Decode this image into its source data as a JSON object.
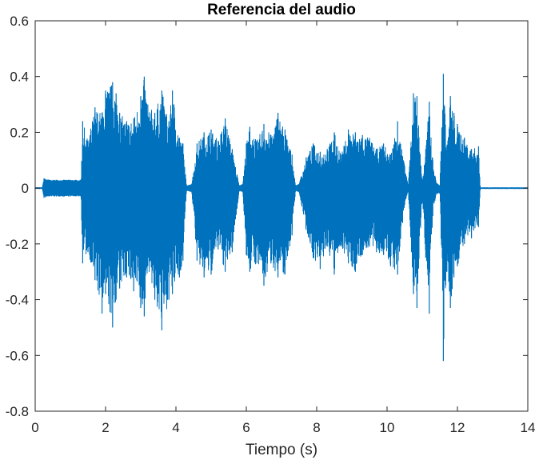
{
  "chart_data": {
    "type": "line",
    "title": "Referencia del audio",
    "xlabel": "Tiempo (s)",
    "ylabel": "",
    "xlim": [
      0,
      14
    ],
    "ylim": [
      -0.8,
      0.6
    ],
    "xticks": [
      0,
      2,
      4,
      6,
      8,
      10,
      12,
      14
    ],
    "xtick_labels": [
      "0",
      "2",
      "4",
      "6",
      "8",
      "10",
      "12",
      "14"
    ],
    "yticks": [
      -0.8,
      -0.6,
      -0.4,
      -0.2,
      0,
      0.2,
      0.4,
      0.6
    ],
    "ytick_labels": [
      "-0.8",
      "-0.6",
      "-0.4",
      "-0.2",
      "0",
      "0.2",
      "0.4",
      "0.6"
    ],
    "grid": false,
    "series_color": "#0072BD",
    "series": [
      {
        "x": [
          0,
          0.2,
          0.25,
          0.4,
          0.6,
          0.8,
          1.0,
          1.3,
          1.35,
          1.5,
          1.7,
          1.9,
          2.0,
          2.2,
          2.3,
          2.4,
          2.6,
          2.8,
          3.0,
          3.1,
          3.2,
          3.4,
          3.6,
          3.8,
          3.9,
          4.1,
          4.2,
          4.3,
          4.45,
          4.6,
          4.8,
          5.0,
          5.2,
          5.4,
          5.6,
          5.8,
          5.9,
          6.0,
          6.1,
          6.3,
          6.5,
          6.7,
          6.9,
          7.1,
          7.3,
          7.4,
          7.5,
          7.7,
          7.9,
          8.1,
          8.3,
          8.5,
          8.7,
          8.9,
          9.1,
          9.3,
          9.5,
          9.7,
          9.9,
          10.1,
          10.3,
          10.5,
          10.6,
          10.75,
          10.85,
          11.0,
          11.1,
          11.2,
          11.3,
          11.4,
          11.5,
          11.6,
          11.7,
          11.8,
          11.9,
          12.0,
          12.2,
          12.4,
          12.6,
          12.65,
          14.0
        ],
        "upper": [
          0.003,
          0.003,
          0.035,
          0.03,
          0.03,
          0.03,
          0.03,
          0.03,
          0.24,
          0.17,
          0.29,
          0.27,
          0.35,
          0.38,
          0.34,
          0.27,
          0.24,
          0.25,
          0.33,
          0.4,
          0.3,
          0.27,
          0.35,
          0.24,
          0.35,
          0.18,
          0.16,
          0.01,
          0.015,
          0.16,
          0.2,
          0.21,
          0.17,
          0.25,
          0.14,
          0.01,
          0.015,
          0.16,
          0.22,
          0.17,
          0.23,
          0.19,
          0.27,
          0.21,
          0.12,
          0.01,
          0.015,
          0.11,
          0.16,
          0.13,
          0.14,
          0.2,
          0.12,
          0.21,
          0.2,
          0.19,
          0.18,
          0.14,
          0.16,
          0.12,
          0.24,
          0.08,
          0.01,
          0.34,
          0.33,
          0.02,
          0.14,
          0.31,
          0.1,
          0.02,
          0.01,
          0.41,
          0.15,
          0.33,
          0.27,
          0.23,
          0.18,
          0.14,
          0.15,
          0.003,
          0.003
        ],
        "lower": [
          -0.003,
          -0.003,
          -0.035,
          -0.03,
          -0.03,
          -0.03,
          -0.03,
          -0.03,
          -0.27,
          -0.23,
          -0.33,
          -0.45,
          -0.38,
          -0.5,
          -0.4,
          -0.36,
          -0.32,
          -0.37,
          -0.43,
          -0.46,
          -0.28,
          -0.4,
          -0.51,
          -0.4,
          -0.38,
          -0.32,
          -0.26,
          -0.01,
          -0.015,
          -0.26,
          -0.32,
          -0.31,
          -0.22,
          -0.3,
          -0.23,
          -0.01,
          -0.015,
          -0.24,
          -0.3,
          -0.27,
          -0.35,
          -0.27,
          -0.32,
          -0.31,
          -0.17,
          -0.01,
          -0.015,
          -0.15,
          -0.25,
          -0.29,
          -0.21,
          -0.31,
          -0.21,
          -0.27,
          -0.3,
          -0.24,
          -0.21,
          -0.23,
          -0.24,
          -0.28,
          -0.31,
          -0.06,
          -0.01,
          -0.38,
          -0.43,
          -0.03,
          -0.25,
          -0.45,
          -0.1,
          -0.02,
          -0.02,
          -0.62,
          -0.3,
          -0.43,
          -0.32,
          -0.28,
          -0.2,
          -0.18,
          -0.14,
          -0.003,
          -0.003
        ]
      }
    ]
  }
}
